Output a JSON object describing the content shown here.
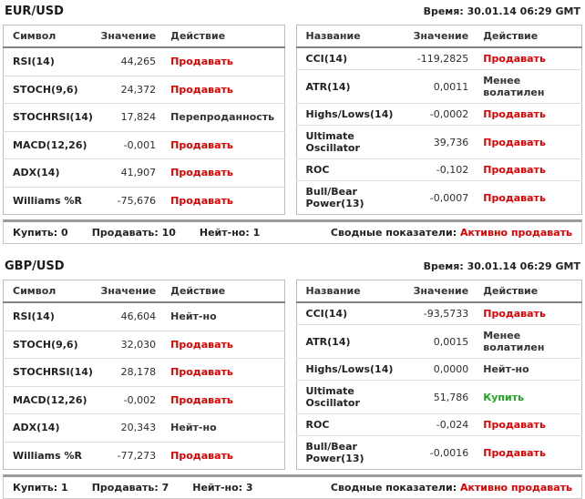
{
  "colors": {
    "sell": "#e00000",
    "buy": "#1fa51f",
    "neutral": "#333333",
    "border": "#bdbdbd",
    "header_rule": "#828282"
  },
  "sections": [
    {
      "pair": "EUR/USD",
      "time": "Время: 30.01.14 06:29 GMT",
      "left_table": {
        "headers": [
          "Символ",
          "Значение",
          "Действие"
        ],
        "rows": [
          {
            "name": "RSI(14)",
            "value": "44,265",
            "action": "Продавать",
            "state": "sell"
          },
          {
            "name": "STOCH(9,6)",
            "value": "24,372",
            "action": "Продавать",
            "state": "sell"
          },
          {
            "name": "STOCHRSI(14)",
            "value": "17,824",
            "action": "Перепроданность",
            "state": "neutral"
          },
          {
            "name": "MACD(12,26)",
            "value": "-0,001",
            "action": "Продавать",
            "state": "sell"
          },
          {
            "name": "ADX(14)",
            "value": "41,907",
            "action": "Продавать",
            "state": "sell"
          },
          {
            "name": "Williams %R",
            "value": "-75,676",
            "action": "Продавать",
            "state": "sell"
          }
        ]
      },
      "right_table": {
        "headers": [
          "Название",
          "Значение",
          "Действие"
        ],
        "rows": [
          {
            "name": "CCI(14)",
            "value": "-119,2825",
            "action": "Продавать",
            "state": "sell"
          },
          {
            "name": "ATR(14)",
            "value": "0,0011",
            "action": "Менее волатилен",
            "state": "neutral"
          },
          {
            "name": "Highs/Lows(14)",
            "value": "-0,0002",
            "action": "Продавать",
            "state": "sell"
          },
          {
            "name": "Ultimate Oscillator",
            "value": "39,736",
            "action": "Продавать",
            "state": "sell"
          },
          {
            "name": "ROC",
            "value": "-0,102",
            "action": "Продавать",
            "state": "sell"
          },
          {
            "name": "Bull/Bear Power(13)",
            "value": "-0,0007",
            "action": "Продавать",
            "state": "sell"
          }
        ]
      },
      "summary": {
        "counts": [
          "Купить: 0",
          "Продавать: 10",
          "Нейт-но: 1"
        ],
        "label": "Сводные показатели:",
        "value": "Активно продавать",
        "state": "sell"
      }
    },
    {
      "pair": "GBP/USD",
      "time": "Время: 30.01.14 06:29 GMT",
      "left_table": {
        "headers": [
          "Символ",
          "Значение",
          "Действие"
        ],
        "rows": [
          {
            "name": "RSI(14)",
            "value": "46,604",
            "action": "Нейт-но",
            "state": "neutral"
          },
          {
            "name": "STOCH(9,6)",
            "value": "32,030",
            "action": "Продавать",
            "state": "sell"
          },
          {
            "name": "STOCHRSI(14)",
            "value": "28,178",
            "action": "Продавать",
            "state": "sell"
          },
          {
            "name": "MACD(12,26)",
            "value": "-0,002",
            "action": "Продавать",
            "state": "sell"
          },
          {
            "name": "ADX(14)",
            "value": "20,343",
            "action": "Нейт-но",
            "state": "neutral"
          },
          {
            "name": "Williams %R",
            "value": "-77,273",
            "action": "Продавать",
            "state": "sell"
          }
        ]
      },
      "right_table": {
        "headers": [
          "Название",
          "Значение",
          "Действие"
        ],
        "rows": [
          {
            "name": "CCI(14)",
            "value": "-93,5733",
            "action": "Продавать",
            "state": "sell"
          },
          {
            "name": "ATR(14)",
            "value": "0,0015",
            "action": "Менее волатилен",
            "state": "neutral"
          },
          {
            "name": "Highs/Lows(14)",
            "value": "0,0000",
            "action": "Нейт-но",
            "state": "neutral"
          },
          {
            "name": "Ultimate Oscillator",
            "value": "51,786",
            "action": "Купить",
            "state": "buy"
          },
          {
            "name": "ROC",
            "value": "-0,024",
            "action": "Продавать",
            "state": "sell"
          },
          {
            "name": "Bull/Bear Power(13)",
            "value": "-0,0016",
            "action": "Продавать",
            "state": "sell"
          }
        ]
      },
      "summary": {
        "counts": [
          "Купить: 1",
          "Продавать: 7",
          "Нейт-но: 3"
        ],
        "label": "Сводные показатели:",
        "value": "Активно продавать",
        "state": "sell"
      }
    }
  ]
}
